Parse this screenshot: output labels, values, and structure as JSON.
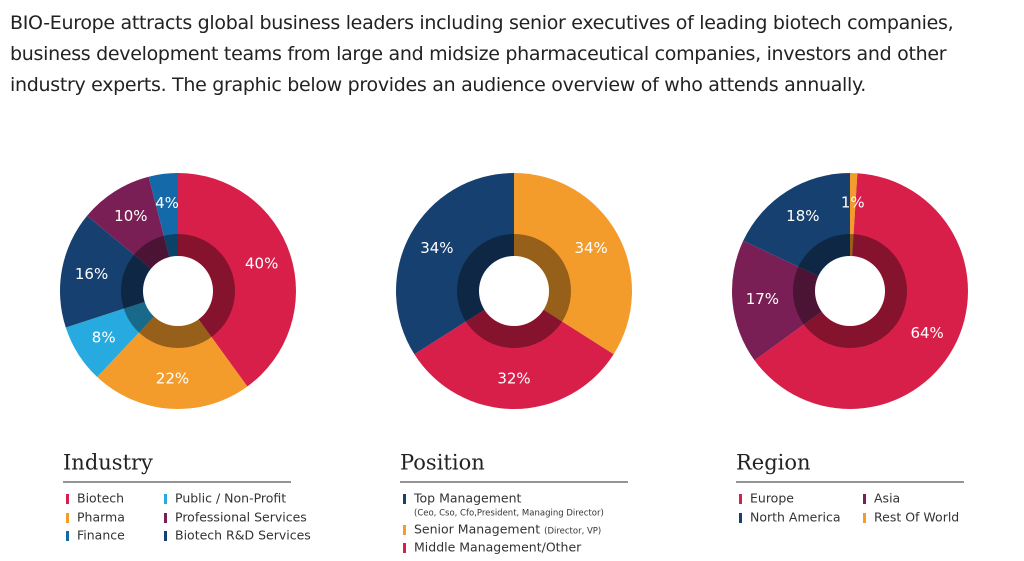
{
  "intro": "BIO-Europe attracts global business leaders including senior executives of leading biotech companies, business development teams from large and midsize pharmaceutical companies, investors and other industry experts. The graphic below provides an audience overview of who attends annually.",
  "chart_data": [
    {
      "type": "pie",
      "title": "Industry",
      "categories": [
        "Biotech",
        "Pharma",
        "Public / Non-Profit",
        "Biotech R&D Services",
        "Professional Services",
        "Finance"
      ],
      "values": [
        40,
        22,
        8,
        16,
        10,
        4
      ],
      "value_labels": [
        "40%",
        "22%",
        "8%",
        "16%",
        "10%",
        "4%"
      ],
      "colors": [
        "#d81f4a",
        "#f39c2b",
        "#27aadf",
        "#16406f",
        "#7a1f55",
        "#1469a8"
      ]
    },
    {
      "type": "pie",
      "title": "Position",
      "categories": [
        "Senior Management",
        "Middle Management/Other",
        "Top Management"
      ],
      "category_notes": [
        "(Director, VP)",
        null,
        "(Ceo, Cso, Cfo,President, Managing Director)"
      ],
      "values": [
        34,
        32,
        34
      ],
      "value_labels": [
        "34%",
        "32%",
        "34%"
      ],
      "colors": [
        "#f39c2b",
        "#d81f4a",
        "#16406f"
      ]
    },
    {
      "type": "pie",
      "title": "Region",
      "categories": [
        "Rest Of World",
        "Europe",
        "Asia",
        "North America"
      ],
      "values": [
        1,
        64,
        17,
        18
      ],
      "value_labels": [
        "1%",
        "64%",
        "17%",
        "18%"
      ],
      "colors": [
        "#f39c2b",
        "#d81f4a",
        "#7a1f55",
        "#16406f"
      ]
    }
  ]
}
